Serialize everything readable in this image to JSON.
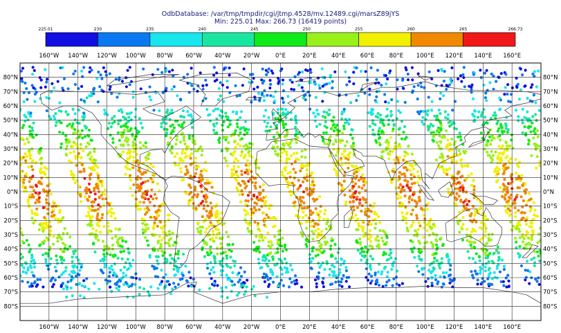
{
  "title": {
    "line1": "OdbDatabase: /var/tmp/tmpdir/cgi/jtmp.4528/mv.12489.cgi/marsZ89jYS",
    "line2": "Min: 225.01 Max: 266.73 (16419 points)"
  },
  "colorbar": {
    "ticks": [
      "225.01",
      "230",
      "235",
      "240",
      "245",
      "250",
      "255",
      "260",
      "265",
      "266.73"
    ],
    "colors": [
      "#1010e0",
      "#0a78f0",
      "#18e6ec",
      "#18e6a0",
      "#10ea18",
      "#9af01a",
      "#f0f000",
      "#f08800",
      "#f01818"
    ]
  },
  "axes": {
    "lon_labels": [
      "160°W",
      "140°W",
      "120°W",
      "100°W",
      "80°W",
      "60°W",
      "40°W",
      "20°W",
      "0°E",
      "20°E",
      "40°E",
      "60°E",
      "80°E",
      "100°E",
      "120°E",
      "140°E",
      "160°E"
    ],
    "lat_labels": [
      "80°N",
      "70°N",
      "60°N",
      "50°N",
      "40°N",
      "30°N",
      "20°N",
      "10°N",
      "0°N",
      "10°S",
      "20°S",
      "30°S",
      "40°S",
      "50°S",
      "60°S",
      "70°S",
      "80°S"
    ]
  },
  "chart_data": {
    "type": "scatter",
    "title": "OdbDatabase: /var/tmp/tmpdir/cgi/jtmp.4528/mv.12489.cgi/marsZ89jYS",
    "subtitle": "Min: 225.01 Max: 266.73 (16419 points)",
    "value_min": 225.01,
    "value_max": 266.73,
    "point_count": 16419,
    "xlim": [
      -180,
      180
    ],
    "ylim": [
      -90,
      90
    ],
    "grid": true,
    "swath_center_longitudes_at_equator": [
      -167,
      -130,
      -93,
      -56,
      -20,
      16,
      52,
      89,
      126,
      162
    ],
    "color_levels": [
      225.01,
      230,
      235,
      240,
      245,
      250,
      255,
      260,
      265,
      266.73
    ]
  }
}
